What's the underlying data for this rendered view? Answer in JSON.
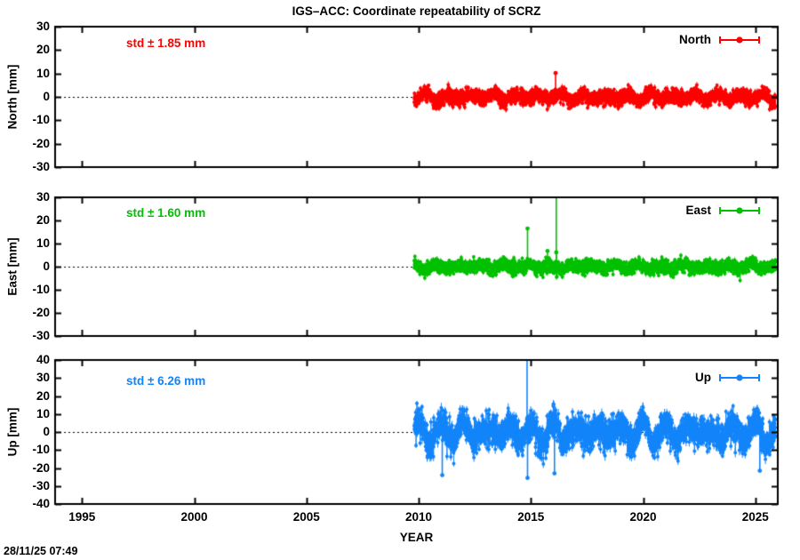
{
  "title": "IGS–ACC: Coordinate repeatability of SCRZ",
  "timestamp": "28/11/25 07:49",
  "x_axis": {
    "label": "YEAR",
    "range": [
      1993.8,
      2026.0
    ],
    "ticks": [
      1995,
      2000,
      2005,
      2010,
      2015,
      2020,
      2025
    ]
  },
  "chart_data": [
    {
      "type": "scatter",
      "panel": "north",
      "legend": "North",
      "ylabel": "North [mm]",
      "std_label": "std ± 1.85 mm",
      "std_value_mm": 1.85,
      "color": "#ff0000",
      "ylim": [
        -30,
        30
      ],
      "ytick_step": 10,
      "zero_line": true,
      "data_start": 2009.8,
      "data_end": 2025.9,
      "band": {
        "amplitude": 1.3,
        "variation": [
          [
            0.5,
            3.1
          ],
          [
            0.3,
            1.7
          ]
        ],
        "noise_sigma": 1.5,
        "errorbar_mm": 1.0,
        "phase": 0.08
      },
      "outliers": [
        [
          2016.1,
          10.2
        ]
      ]
    },
    {
      "type": "scatter",
      "panel": "east",
      "legend": "East",
      "ylabel": "East [mm]",
      "std_label": "std ± 1.60 mm",
      "std_value_mm": 1.6,
      "color": "#00c000",
      "ylim": [
        -30,
        30
      ],
      "ytick_step": 10,
      "zero_line": true,
      "data_start": 2009.8,
      "data_end": 2025.9,
      "band": {
        "amplitude": 0.9,
        "variation": [
          [
            0.4,
            2.8
          ],
          [
            0.25,
            1.6
          ]
        ],
        "noise_sigma": 1.35,
        "errorbar_mm": 0.9,
        "phase": 0.55
      },
      "outliers": [
        [
          2014.85,
          16.5
        ],
        [
          2015.74,
          6.8
        ],
        [
          2016.13,
          6.2
        ],
        [
          2016.13,
          34
        ]
      ]
    },
    {
      "type": "scatter",
      "panel": "up",
      "legend": "Up",
      "ylabel": "Up [mm]",
      "std_label": "std ± 6.26 mm",
      "std_value_mm": 6.26,
      "color": "#1284fa",
      "ylim": [
        -40,
        40
      ],
      "ytick_step": 10,
      "zero_line": true,
      "data_start": 2009.8,
      "data_end": 2025.9,
      "band": {
        "amplitude": 4.2,
        "variation": [
          [
            2.2,
            4.7
          ],
          [
            1.4,
            1.9
          ]
        ],
        "noise_sigma": 4.1,
        "errorbar_mm": 2.0,
        "phase": 0.75
      },
      "outliers": [
        [
          2011.05,
          -24
        ],
        [
          2014.83,
          52
        ],
        [
          2014.85,
          -25.5
        ],
        [
          2016.05,
          -23
        ],
        [
          2025.2,
          -21.5
        ]
      ]
    }
  ]
}
